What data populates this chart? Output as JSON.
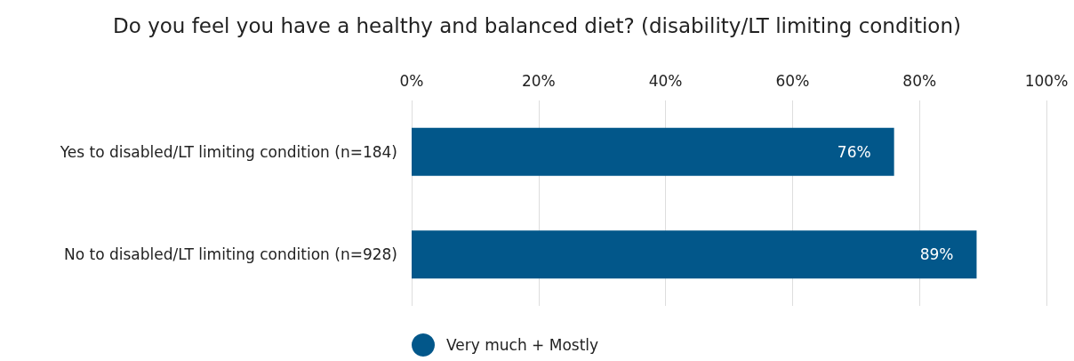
{
  "chart_data": {
    "type": "bar",
    "orientation": "horizontal",
    "title": "Do you feel you have a healthy and balanced diet? (disability/LT limiting condition)",
    "categories": [
      "Yes to disabled/LT limiting condition (n=184)",
      "No to disabled/LT limiting condition (n=928)"
    ],
    "series": [
      {
        "name": "Very much + Mostly",
        "color": "#02578a",
        "values": [
          76,
          89
        ],
        "value_labels": [
          "76%",
          "89%"
        ]
      }
    ],
    "xlim": [
      0,
      100
    ],
    "xticks": [
      {
        "value": 0,
        "label": "0%"
      },
      {
        "value": 20,
        "label": "20%"
      },
      {
        "value": 40,
        "label": "40%"
      },
      {
        "value": 60,
        "label": "60%"
      },
      {
        "value": 80,
        "label": "80%"
      },
      {
        "value": 100,
        "label": "100%"
      }
    ],
    "grid": "x",
    "legend": "bottom"
  }
}
